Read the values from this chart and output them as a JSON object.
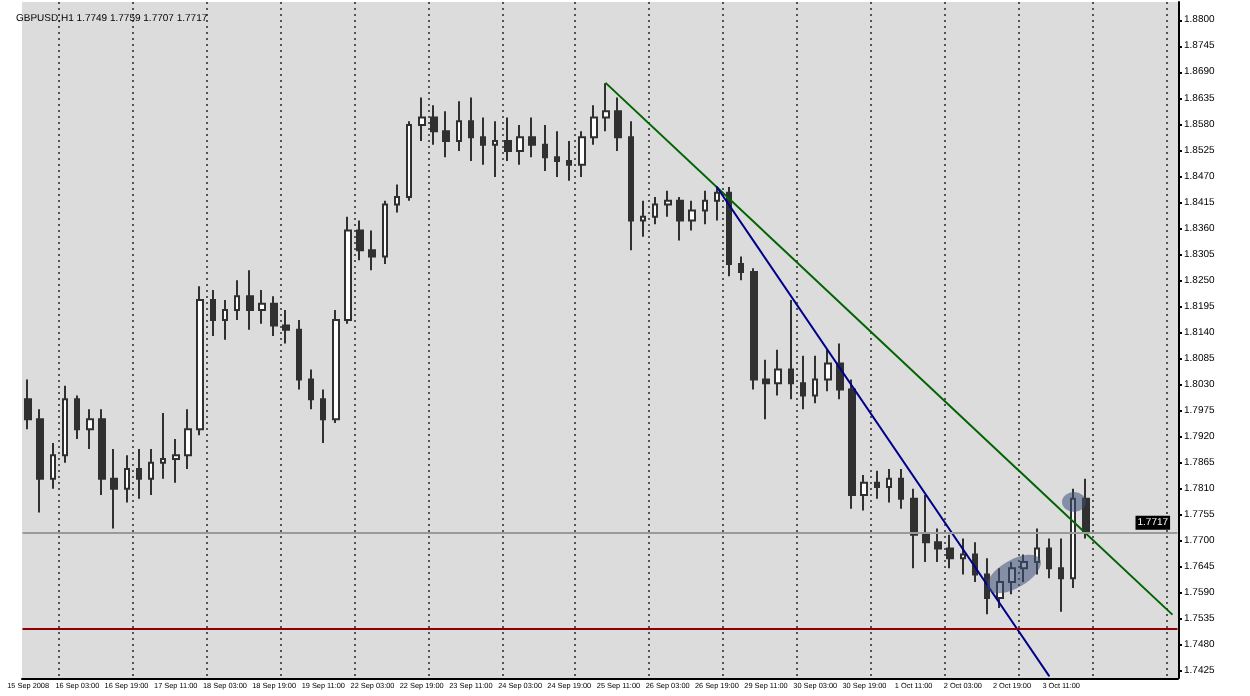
{
  "chart_data": {
    "type": "candlestick",
    "title": "GBPUSD,H1 1.7749 1.7759 1.7707 1.7717",
    "categories": [
      "15 Sep 2008",
      null,
      null,
      null,
      "16 Sep 03:00",
      null,
      null,
      null,
      "16 Sep 19:00",
      null,
      null,
      null,
      "17 Sep 11:00",
      null,
      null,
      null,
      "18 Sep 03:00",
      null,
      null,
      null,
      "18 Sep 19:00",
      null,
      null,
      null,
      "19 Sep 11:00",
      null,
      null,
      null,
      "22 Sep 03:00",
      null,
      null,
      null,
      "22 Sep 19:00",
      null,
      null,
      null,
      "23 Sep 11:00",
      null,
      null,
      null,
      "24 Sep 03:00",
      null,
      null,
      null,
      "24 Sep 19:00",
      null,
      null,
      null,
      "25 Sep 11:00",
      null,
      null,
      null,
      "26 Sep 03:00",
      null,
      null,
      null,
      "26 Sep 19:00",
      null,
      null,
      null,
      "29 Sep 11:00",
      null,
      null,
      null,
      "30 Sep 03:00",
      null,
      null,
      null,
      "30 Sep 19:00",
      null,
      null,
      null,
      "1 Oct 11:00",
      null,
      null,
      null,
      "2 Oct 03:00",
      null,
      null,
      null,
      "2 Oct 19:00",
      null,
      null,
      null,
      "3 Oct 11:00",
      null,
      null,
      null,
      null,
      null,
      null,
      null,
      null,
      null
    ],
    "ohlc": [
      [
        1.7999,
        1.8041,
        1.7936,
        1.7957
      ],
      [
        1.7957,
        1.7978,
        1.776,
        1.7831
      ],
      [
        1.7831,
        1.7907,
        1.781,
        1.7881
      ],
      [
        1.7881,
        1.8028,
        1.7865,
        1.7999
      ],
      [
        1.7999,
        1.8007,
        1.7915,
        1.7936
      ],
      [
        1.7936,
        1.7978,
        1.7894,
        1.7957
      ],
      [
        1.7957,
        1.7978,
        1.7797,
        1.7831
      ],
      [
        1.7831,
        1.7894,
        1.7726,
        1.781
      ],
      [
        1.781,
        1.7881,
        1.7781,
        1.7852
      ],
      [
        1.7852,
        1.7894,
        1.7789,
        1.7831
      ],
      [
        1.7831,
        1.7894,
        1.7797,
        1.7865
      ],
      [
        1.7865,
        1.797,
        1.7831,
        1.7873
      ],
      [
        1.7873,
        1.7915,
        1.7823,
        1.7881
      ],
      [
        1.7881,
        1.7978,
        1.7852,
        1.7936
      ],
      [
        1.7936,
        1.8238,
        1.7923,
        1.8209
      ],
      [
        1.8209,
        1.823,
        1.8133,
        1.8167
      ],
      [
        1.8167,
        1.8209,
        1.8125,
        1.8188
      ],
      [
        1.8188,
        1.8251,
        1.8167,
        1.8217
      ],
      [
        1.8217,
        1.8272,
        1.8146,
        1.8188
      ],
      [
        1.8188,
        1.823,
        1.8159,
        1.8201
      ],
      [
        1.8201,
        1.8217,
        1.8133,
        1.8155
      ],
      [
        1.8155,
        1.8188,
        1.8117,
        1.8146
      ],
      [
        1.8146,
        1.8167,
        1.802,
        1.8041
      ],
      [
        1.8041,
        1.8062,
        1.7978,
        1.7999
      ],
      [
        1.7999,
        1.802,
        1.7907,
        1.7957
      ],
      [
        1.7957,
        1.8188,
        1.7949,
        1.8167
      ],
      [
        1.8167,
        1.8385,
        1.8159,
        1.8356
      ],
      [
        1.8356,
        1.8377,
        1.8293,
        1.8314
      ],
      [
        1.8314,
        1.8356,
        1.8272,
        1.8301
      ],
      [
        1.8301,
        1.8419,
        1.8285,
        1.8411
      ],
      [
        1.8411,
        1.8453,
        1.8394,
        1.8427
      ],
      [
        1.8427,
        1.8587,
        1.8419,
        1.8579
      ],
      [
        1.8579,
        1.8637,
        1.8545,
        1.8595
      ],
      [
        1.8595,
        1.8621,
        1.8537,
        1.8566
      ],
      [
        1.8566,
        1.8608,
        1.8511,
        1.8545
      ],
      [
        1.8545,
        1.8629,
        1.8524,
        1.8587
      ],
      [
        1.8587,
        1.8637,
        1.8503,
        1.8553
      ],
      [
        1.8553,
        1.8595,
        1.8495,
        1.8537
      ],
      [
        1.8537,
        1.8587,
        1.8469,
        1.8545
      ],
      [
        1.8545,
        1.8595,
        1.8503,
        1.8524
      ],
      [
        1.8524,
        1.8579,
        1.8495,
        1.8553
      ],
      [
        1.8553,
        1.8595,
        1.8511,
        1.8537
      ],
      [
        1.8537,
        1.8579,
        1.8482,
        1.8511
      ],
      [
        1.8511,
        1.8566,
        1.8469,
        1.8503
      ],
      [
        1.8503,
        1.8545,
        1.8461,
        1.8495
      ],
      [
        1.8495,
        1.8566,
        1.8469,
        1.8553
      ],
      [
        1.8553,
        1.8621,
        1.8537,
        1.8595
      ],
      [
        1.8595,
        1.8667,
        1.8566,
        1.8608
      ],
      [
        1.8608,
        1.8637,
        1.8524,
        1.8553
      ],
      [
        1.8553,
        1.8587,
        1.8314,
        1.8377
      ],
      [
        1.8377,
        1.8419,
        1.8343,
        1.8385
      ],
      [
        1.8385,
        1.8427,
        1.8369,
        1.8411
      ],
      [
        1.8411,
        1.844,
        1.8385,
        1.8419
      ],
      [
        1.8419,
        1.8427,
        1.8335,
        1.8377
      ],
      [
        1.8377,
        1.8419,
        1.8356,
        1.8398
      ],
      [
        1.8398,
        1.844,
        1.8369,
        1.8419
      ],
      [
        1.8419,
        1.8448,
        1.8377,
        1.8436
      ],
      [
        1.8436,
        1.8448,
        1.8259,
        1.8285
      ],
      [
        1.8285,
        1.8301,
        1.8251,
        1.8268
      ],
      [
        1.8268,
        1.8276,
        1.802,
        1.8041
      ],
      [
        1.8041,
        1.8083,
        1.7957,
        1.8033
      ],
      [
        1.8033,
        1.8104,
        1.8007,
        1.8062
      ],
      [
        1.8062,
        1.8209,
        1.7999,
        1.8033
      ],
      [
        1.8033,
        1.8091,
        1.7978,
        1.8007
      ],
      [
        1.8007,
        1.8091,
        1.7991,
        1.8041
      ],
      [
        1.8041,
        1.8104,
        1.8016,
        1.8075
      ],
      [
        1.8075,
        1.8117,
        1.7999,
        1.802
      ],
      [
        1.802,
        1.8041,
        1.7768,
        1.7797
      ],
      [
        1.7797,
        1.7839,
        1.7764,
        1.7823
      ],
      [
        1.7823,
        1.7848,
        1.7789,
        1.7814
      ],
      [
        1.7814,
        1.7852,
        1.7781,
        1.7831
      ],
      [
        1.7831,
        1.7852,
        1.7768,
        1.7789
      ],
      [
        1.7789,
        1.781,
        1.7642,
        1.7713
      ],
      [
        1.7713,
        1.7797,
        1.7655,
        1.7697
      ],
      [
        1.7697,
        1.7726,
        1.7655,
        1.7684
      ],
      [
        1.7684,
        1.7713,
        1.7642,
        1.7663
      ],
      [
        1.7663,
        1.7705,
        1.7629,
        1.7671
      ],
      [
        1.7671,
        1.7697,
        1.7613,
        1.7629
      ],
      [
        1.7629,
        1.7663,
        1.7545,
        1.7579
      ],
      [
        1.7579,
        1.7642,
        1.7558,
        1.7613
      ],
      [
        1.7613,
        1.7655,
        1.7587,
        1.7642
      ],
      [
        1.7642,
        1.7671,
        1.7613,
        1.7655
      ],
      [
        1.7655,
        1.7726,
        1.7629,
        1.7684
      ],
      [
        1.7684,
        1.7705,
        1.7621,
        1.7642
      ],
      [
        1.7642,
        1.7705,
        1.755,
        1.7621
      ],
      [
        1.7621,
        1.781,
        1.76,
        1.7789
      ],
      [
        1.7789,
        1.7831,
        1.7705,
        1.7717
      ],
      null,
      null,
      null,
      null,
      null,
      null,
      null
    ],
    "color": "#303030",
    "series": [
      {
        "type": "line",
        "color": "#006400",
        "values": [
          null,
          null,
          null,
          null,
          null,
          null,
          null,
          null,
          null,
          null,
          null,
          null,
          null,
          null,
          null,
          null,
          null,
          null,
          null,
          null,
          null,
          null,
          null,
          null,
          null,
          null,
          null,
          null,
          null,
          null,
          null,
          null,
          null,
          null,
          null,
          null,
          null,
          null,
          null,
          null,
          null,
          null,
          null,
          null,
          null,
          null,
          null,
          1.8667,
          null,
          null,
          null,
          null,
          null,
          null,
          null,
          null,
          null,
          null,
          null,
          null,
          null,
          null,
          null,
          null,
          null,
          null,
          null,
          null,
          null,
          null,
          null,
          null,
          null,
          null,
          null,
          null,
          null,
          null,
          null,
          null,
          null,
          null,
          null,
          null,
          null,
          null,
          null,
          null,
          null,
          null,
          null,
          null,
          null,
          1.7545
        ]
      },
      {
        "type": "line",
        "color": "#00008b",
        "values": [
          null,
          null,
          null,
          null,
          null,
          null,
          null,
          null,
          null,
          null,
          null,
          null,
          null,
          null,
          null,
          null,
          null,
          null,
          null,
          null,
          null,
          null,
          null,
          null,
          null,
          null,
          null,
          null,
          null,
          null,
          null,
          null,
          null,
          null,
          null,
          null,
          null,
          null,
          null,
          null,
          null,
          null,
          null,
          null,
          null,
          null,
          null,
          null,
          null,
          null,
          null,
          null,
          null,
          null,
          null,
          null,
          1.8448,
          null,
          null,
          null,
          null,
          null,
          null,
          null,
          null,
          null,
          null,
          null,
          null,
          null,
          null,
          null,
          null,
          null,
          null,
          null,
          null,
          null,
          null,
          null,
          null,
          null,
          null,
          1.7415,
          null,
          null,
          null,
          null,
          null,
          null,
          null,
          null,
          null,
          null
        ]
      }
    ],
    "ylim": [
      1.741,
      1.8839
    ],
    "yticks": [
      1.7425,
      {
        "value": 1.748,
        "label": "1.7480"
      },
      1.7535,
      {
        "value": 1.759,
        "label": "1.7590"
      },
      1.7645,
      {
        "value": 1.77,
        "label": "1.7700"
      },
      1.7755,
      {
        "value": 1.781,
        "label": "1.7810"
      },
      1.7865,
      {
        "value": 1.792,
        "label": "1.7920"
      },
      1.7975,
      {
        "value": 1.803,
        "label": "1.8030"
      },
      1.8085,
      {
        "value": 1.814,
        "label": "1.8140"
      },
      1.8195,
      {
        "value": 1.825,
        "label": "1.8250"
      },
      1.8305,
      {
        "value": 1.836,
        "label": "1.8360"
      },
      1.8415,
      {
        "value": 1.847,
        "label": "1.8470"
      },
      1.8525,
      {
        "value": 1.858,
        "label": "1.8580"
      },
      1.8635,
      {
        "value": 1.869,
        "label": "1.8690"
      },
      1.8745,
      {
        "value": 1.88,
        "label": "1.8800"
      }
    ],
    "ref_lines": [
      {
        "axis": "y",
        "value": 1.7717,
        "label": "1.7717",
        "color": "#9a9a9a"
      },
      {
        "axis": "y",
        "value": 1.7516,
        "color": "#8b0000"
      }
    ],
    "grid": "x",
    "marker": "none",
    "line_style": "solid"
  }
}
